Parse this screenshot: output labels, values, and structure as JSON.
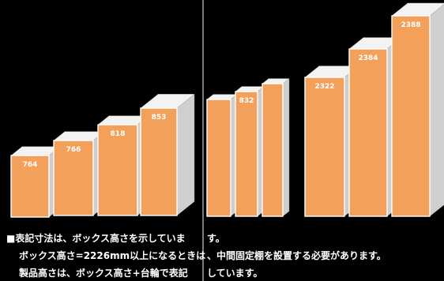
{
  "boxes_left": [
    {
      "label": "764"
    },
    {
      "label": "766"
    },
    {
      "label": "818"
    },
    {
      "label": "853"
    }
  ],
  "boxes_right": [
    {
      "label": ""
    },
    {
      "label": "832"
    },
    {
      "label": ""
    },
    {
      "label": "2322"
    },
    {
      "label": "2384"
    },
    {
      "label": "2388"
    }
  ],
  "notes": {
    "line1_left": "■表記寸法は、ボックス高さを示していま",
    "line1_right": "す。",
    "line2_left": "ボックス高さ=2226mm以上になるときは",
    "line2_right": "、中間固定棚を設置する必要があります。",
    "line3_left": "製品高さは、ボックス高さ+台輪で表記",
    "line3_right": "しています。"
  },
  "colors": {
    "front": "#f2a05a",
    "top": "#f3f3f3",
    "side": "#cfcfcf",
    "background": "#000000"
  }
}
